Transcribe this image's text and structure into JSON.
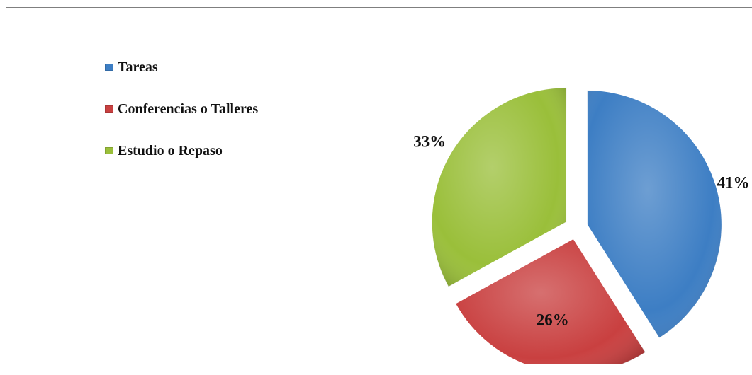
{
  "chart_data": {
    "type": "pie",
    "slices": [
      {
        "label": "Tareas",
        "value": 41,
        "value_label": "41%",
        "color": "#3d7ec4"
      },
      {
        "label": "Conferencias o Talleres",
        "value": 26,
        "value_label": "26%",
        "color": "#c94040"
      },
      {
        "label": "Estudio o Repaso",
        "value": 33,
        "value_label": "33%",
        "color": "#9abf3a"
      }
    ],
    "legend_position": "top-left",
    "exploded": true
  }
}
